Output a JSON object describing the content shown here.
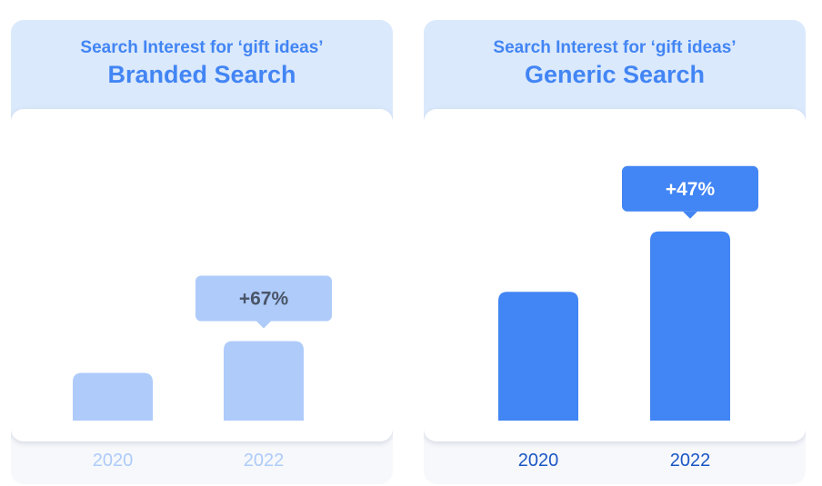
{
  "chart_data": [
    {
      "type": "bar",
      "subtitle": "Search Interest for ‘gift ideas’",
      "title": "Branded Search",
      "categories": [
        "2020",
        "2022"
      ],
      "values": [
        60,
        100
      ],
      "annotation": "+67%",
      "ylim": [
        0,
        250
      ],
      "grid": false,
      "colors": {
        "bar": "#aecbfa",
        "callout": "#aecbfa",
        "callout_text": "#4a5568",
        "xlabel": "#aecbfa"
      }
    },
    {
      "type": "bar",
      "subtitle": "Search Interest for ‘gift ideas’",
      "title": "Generic Search",
      "categories": [
        "2020",
        "2022"
      ],
      "values": [
        162,
        238
      ],
      "annotation": "+47%",
      "ylim": [
        0,
        250
      ],
      "grid": false,
      "colors": {
        "bar": "#4285f4",
        "callout": "#4285f4",
        "callout_text": "#ffffff",
        "xlabel": "#1a56c4"
      }
    }
  ]
}
